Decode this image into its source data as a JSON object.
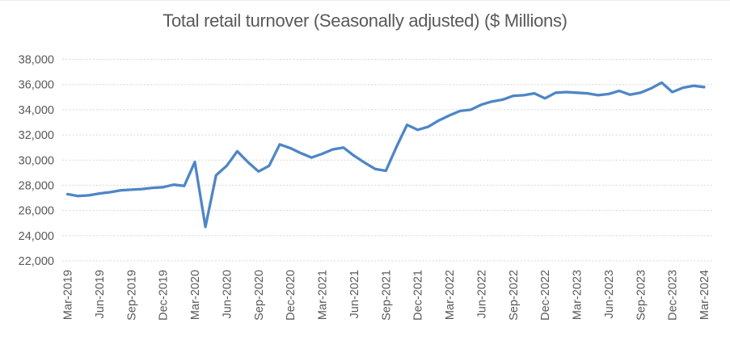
{
  "title": "Total retail turnover (Seasonally adjusted) ($ Millions)",
  "colors": {
    "line": "#4e86c6",
    "gridline": "#d6d6d6",
    "tick_text": "#595959",
    "title_text": "#595959",
    "background": "#ffffff"
  },
  "chart_data": {
    "type": "line",
    "title": "Total retail turnover (Seasonally adjusted) ($ Millions)",
    "series_name": "Total retail turnover ($ millions, seasonally adjusted)",
    "xlabel": "",
    "ylabel": "",
    "grid": true,
    "legend": false,
    "ylim": [
      22000,
      38000
    ],
    "ytick_step": 2000,
    "y_tick_values": [
      38000,
      36000,
      34000,
      32000,
      30000,
      28000,
      26000,
      24000,
      22000
    ],
    "y_tick_labels": [
      "38,000",
      "36,000",
      "34,000",
      "32,000",
      "30,000",
      "28,000",
      "26,000",
      "24,000",
      "22,000"
    ],
    "x_tick_interval": 3,
    "x_tick_labels": [
      "Mar-2019",
      "Jun-2019",
      "Sep-2019",
      "Dec-2019",
      "Mar-2020",
      "Jun-2020",
      "Sep-2020",
      "Dec-2020",
      "Mar-2021",
      "Jun-2021",
      "Sep-2021",
      "Dec-2021",
      "Mar-2022",
      "Jun-2022",
      "Sep-2022",
      "Dec-2022",
      "Mar-2023",
      "Jun-2023",
      "Sep-2023",
      "Dec-2023",
      "Mar-2024"
    ],
    "x": [
      "Mar-2019",
      "Apr-2019",
      "May-2019",
      "Jun-2019",
      "Jul-2019",
      "Aug-2019",
      "Sep-2019",
      "Oct-2019",
      "Nov-2019",
      "Dec-2019",
      "Jan-2020",
      "Feb-2020",
      "Mar-2020",
      "Apr-2020",
      "May-2020",
      "Jun-2020",
      "Jul-2020",
      "Aug-2020",
      "Sep-2020",
      "Oct-2020",
      "Nov-2020",
      "Dec-2020",
      "Jan-2021",
      "Feb-2021",
      "Mar-2021",
      "Apr-2021",
      "May-2021",
      "Jun-2021",
      "Jul-2021",
      "Aug-2021",
      "Sep-2021",
      "Oct-2021",
      "Nov-2021",
      "Dec-2021",
      "Jan-2022",
      "Feb-2022",
      "Mar-2022",
      "Apr-2022",
      "May-2022",
      "Jun-2022",
      "Jul-2022",
      "Aug-2022",
      "Sep-2022",
      "Oct-2022",
      "Nov-2022",
      "Dec-2022",
      "Jan-2023",
      "Feb-2023",
      "Mar-2023",
      "Apr-2023",
      "May-2023",
      "Jun-2023",
      "Jul-2023",
      "Aug-2023",
      "Sep-2023",
      "Oct-2023",
      "Nov-2023",
      "Dec-2023",
      "Jan-2024",
      "Feb-2024",
      "Mar-2024"
    ],
    "values": [
      27300,
      27150,
      27200,
      27350,
      27450,
      27600,
      27650,
      27700,
      27800,
      27850,
      28050,
      27950,
      29850,
      24700,
      28800,
      29550,
      30700,
      29850,
      29100,
      29550,
      31250,
      30950,
      30550,
      30200,
      30500,
      30850,
      31000,
      30350,
      29800,
      29300,
      29150,
      31050,
      32800,
      32400,
      32650,
      33150,
      33550,
      33900,
      34000,
      34400,
      34650,
      34800,
      35100,
      35150,
      35300,
      34900,
      35350,
      35400,
      35350,
      35300,
      35150,
      35250,
      35500,
      35200,
      35350,
      35700,
      36150,
      35400,
      35750,
      35900,
      35800
    ]
  }
}
